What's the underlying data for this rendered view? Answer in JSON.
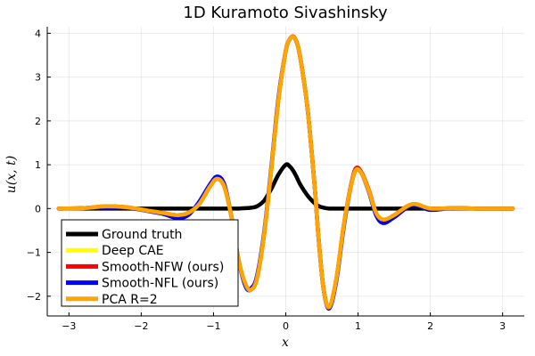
{
  "chart_data": {
    "type": "line",
    "title": "1D Kuramoto Sivashinsky",
    "xlabel": "x",
    "ylabel": "u(x, t)",
    "xlim": [
      -3.3,
      3.3
    ],
    "ylim": [
      -2.45,
      4.15
    ],
    "xticks": [
      -3,
      -2,
      -1,
      0,
      1,
      2,
      3
    ],
    "yticks": [
      -2,
      -1,
      0,
      1,
      2,
      3,
      4
    ],
    "grid": true,
    "legend_position": "bottom-left",
    "x": [
      -3.14,
      -2.8,
      -2.5,
      -2.2,
      -1.9,
      -1.7,
      -1.5,
      -1.35,
      -1.2,
      -1.05,
      -0.95,
      -0.85,
      -0.75,
      -0.65,
      -0.55,
      -0.48,
      -0.4,
      -0.3,
      -0.2,
      -0.1,
      0,
      0.05,
      0.1,
      0.15,
      0.2,
      0.3,
      0.4,
      0.45,
      0.52,
      0.6,
      0.7,
      0.8,
      0.9,
      0.97,
      1.05,
      1.15,
      1.25,
      1.35,
      1.5,
      1.75,
      2.0,
      2.3,
      2.7,
      3.14
    ],
    "series": [
      {
        "name": "Ground truth",
        "color": "#000000",
        "values": [
          0,
          0,
          0,
          0,
          0,
          0,
          0,
          0,
          0,
          0,
          0,
          0,
          0,
          0,
          0.01,
          0.02,
          0.05,
          0.18,
          0.45,
          0.78,
          1.0,
          0.97,
          0.87,
          0.72,
          0.55,
          0.3,
          0.12,
          0.06,
          0.02,
          0,
          0,
          0,
          0,
          0,
          0,
          0,
          0,
          0,
          0,
          0,
          0,
          0,
          0,
          0
        ]
      },
      {
        "name": "Deep CAE",
        "color": "#ffff00",
        "values": [
          0,
          0.01,
          0.05,
          0.03,
          -0.05,
          -0.1,
          -0.15,
          -0.1,
          0.1,
          0.5,
          0.68,
          0.5,
          -0.2,
          -1.2,
          -1.75,
          -1.85,
          -1.6,
          -0.6,
          0.9,
          2.5,
          3.6,
          3.85,
          3.92,
          3.8,
          3.45,
          2.3,
          0.5,
          -0.6,
          -1.8,
          -2.25,
          -1.6,
          -0.4,
          0.5,
          0.88,
          0.8,
          0.4,
          -0.1,
          -0.25,
          -0.15,
          0.1,
          0.0,
          0.01,
          0.0,
          0
        ]
      },
      {
        "name": "Smooth-NFW (ours)",
        "color": "#ff0000",
        "values": [
          0,
          0.01,
          0.05,
          0.03,
          -0.05,
          -0.1,
          -0.15,
          -0.1,
          0.1,
          0.5,
          0.68,
          0.5,
          -0.2,
          -1.2,
          -1.76,
          -1.85,
          -1.6,
          -0.6,
          0.9,
          2.5,
          3.6,
          3.85,
          3.93,
          3.8,
          3.45,
          2.3,
          0.5,
          -0.6,
          -1.8,
          -2.25,
          -1.6,
          -0.4,
          0.52,
          0.92,
          0.82,
          0.42,
          -0.1,
          -0.27,
          -0.15,
          0.1,
          0.0,
          0.01,
          0.0,
          0
        ]
      },
      {
        "name": "Smooth-NFL (ours)",
        "color": "#0000ff",
        "values": [
          0,
          0.01,
          0.03,
          0.02,
          -0.06,
          -0.12,
          -0.22,
          -0.15,
          0.15,
          0.55,
          0.73,
          0.55,
          -0.2,
          -1.2,
          -1.8,
          -1.82,
          -1.55,
          -0.55,
          0.95,
          2.55,
          3.6,
          3.85,
          3.92,
          3.8,
          3.45,
          2.3,
          0.5,
          -0.6,
          -1.8,
          -2.28,
          -1.65,
          -0.45,
          0.5,
          0.88,
          0.8,
          0.38,
          -0.15,
          -0.33,
          -0.2,
          0.08,
          -0.03,
          0.01,
          0.0,
          0
        ]
      },
      {
        "name": "PCA R=2",
        "color": "#ffa500",
        "values": [
          0,
          0.01,
          0.05,
          0.03,
          -0.05,
          -0.1,
          -0.15,
          -0.1,
          0.1,
          0.5,
          0.68,
          0.5,
          -0.2,
          -1.2,
          -1.75,
          -1.85,
          -1.6,
          -0.6,
          0.9,
          2.5,
          3.6,
          3.85,
          3.92,
          3.8,
          3.45,
          2.3,
          0.5,
          -0.6,
          -1.8,
          -2.25,
          -1.6,
          -0.4,
          0.5,
          0.88,
          0.8,
          0.4,
          -0.1,
          -0.25,
          -0.15,
          0.1,
          0.0,
          0.01,
          0.0,
          0
        ]
      }
    ]
  }
}
